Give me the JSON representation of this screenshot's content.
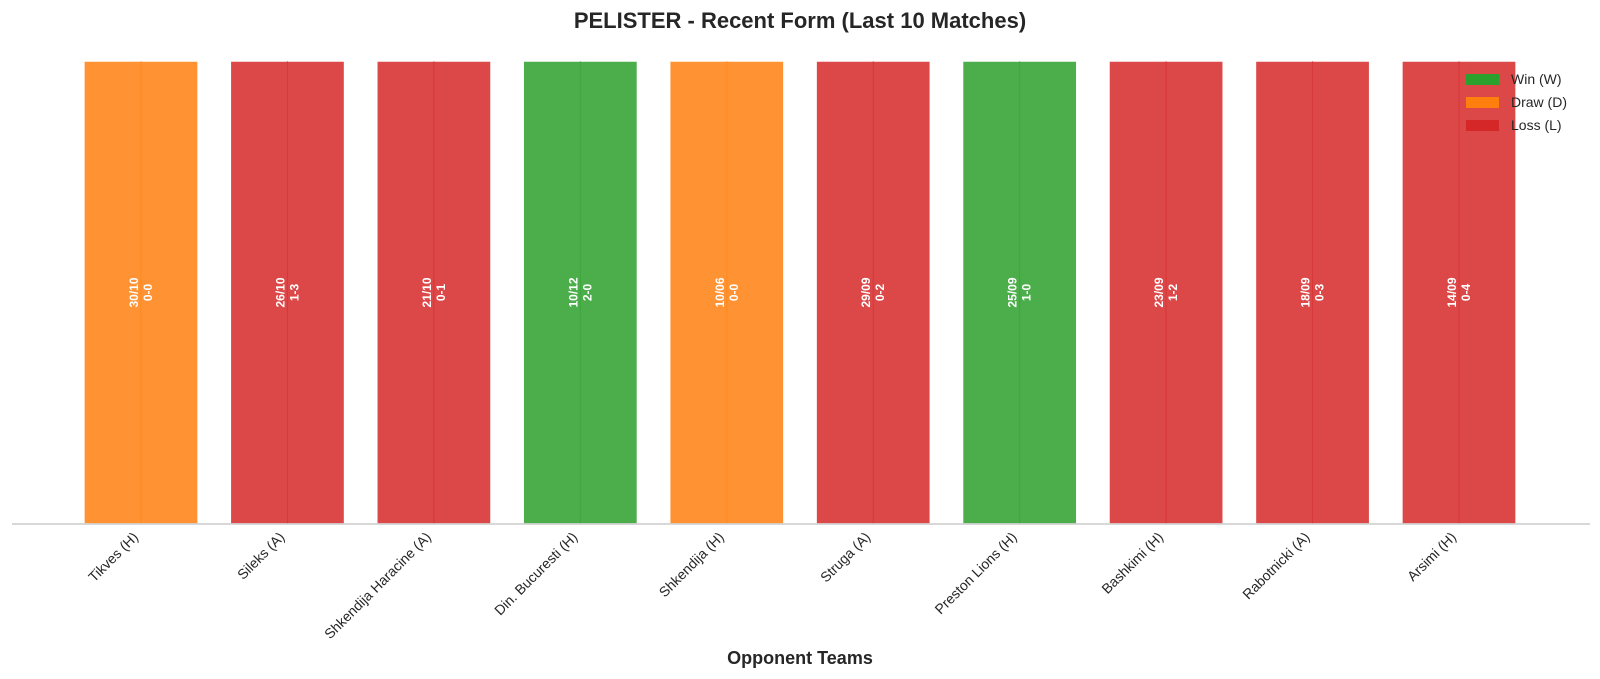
{
  "chart_data": {
    "type": "bar",
    "title": "PELISTER - Recent Form (Last 10 Matches)",
    "xlabel": "Opponent Teams",
    "ylabel": "",
    "categories": [
      "Tikves (H)",
      "Sileks (A)",
      "Shkendija Haracine (A)",
      "Din. Bucuresti (H)",
      "Shkendija (H)",
      "Struga (A)",
      "Preston Lions (H)",
      "Bashkimi (H)",
      "Rabotnicki (A)",
      "Arsimi (H)"
    ],
    "results": [
      "D",
      "L",
      "L",
      "W",
      "D",
      "L",
      "W",
      "L",
      "L",
      "L"
    ],
    "values": [
      1,
      1,
      1,
      1,
      1,
      1,
      1,
      1,
      1,
      1
    ],
    "dates": [
      "30/10",
      "26/10",
      "21/10",
      "10/12",
      "10/06",
      "29/09",
      "25/09",
      "23/09",
      "18/09",
      "14/09"
    ],
    "scores": [
      "0-0",
      "1-3",
      "0-1",
      "2-0",
      "0-0",
      "0-2",
      "1-0",
      "1-2",
      "0-3",
      "0-4"
    ],
    "ylim": [
      0,
      1
    ],
    "grid": false,
    "legend_position": "top-right",
    "legend": [
      {
        "key": "W",
        "label": "Win (W)",
        "color": "#2ca02c"
      },
      {
        "key": "D",
        "label": "Draw (D)",
        "color": "#ff7f0e"
      },
      {
        "key": "L",
        "label": "Loss (L)",
        "color": "#d62728"
      }
    ]
  }
}
